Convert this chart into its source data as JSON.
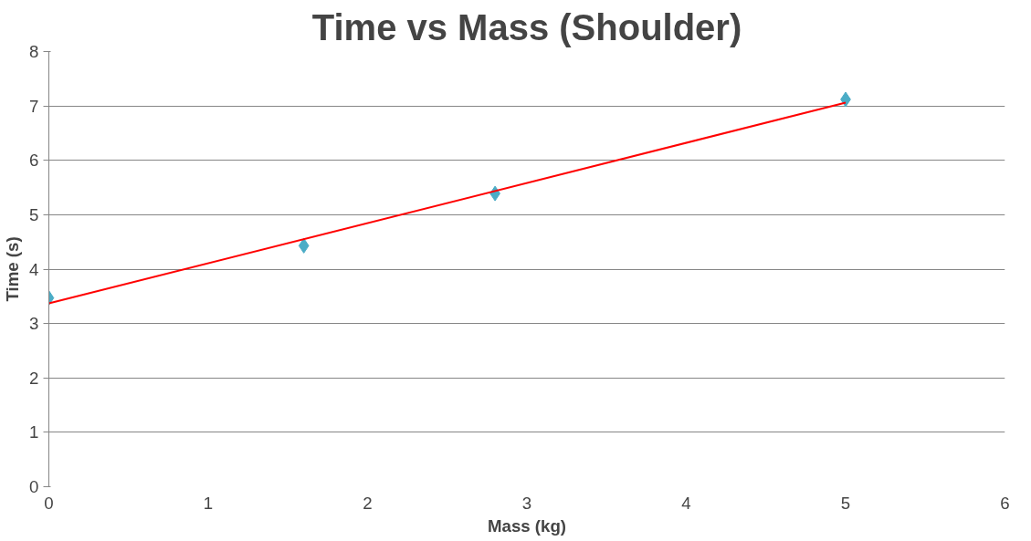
{
  "chart_data": {
    "type": "scatter",
    "title": "Time vs Mass (Shoulder)",
    "xlabel": "Mass (kg)",
    "ylabel": "Time (s)",
    "x": [
      0,
      1.6,
      2.8,
      5
    ],
    "series": [
      {
        "type": "scatter",
        "color": "#4bacc6",
        "marker": "diamond",
        "values": [
          3.47,
          4.43,
          5.39,
          7.12
        ]
      },
      {
        "type": "line",
        "color": "#ff0000",
        "x": [
          0,
          5
        ],
        "values": [
          3.37,
          7.06
        ],
        "line_style": "solid",
        "marker": "none"
      }
    ],
    "xlim": [
      0,
      6
    ],
    "xticks": [
      0,
      1,
      2,
      3,
      4,
      5,
      6
    ],
    "ylim": [
      0,
      8
    ],
    "yticks": [
      0,
      1,
      2,
      3,
      4,
      5,
      6,
      7,
      8
    ],
    "grid": "y"
  }
}
